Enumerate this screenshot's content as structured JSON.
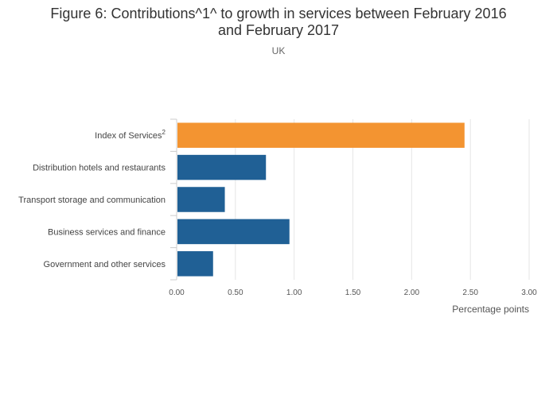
{
  "chart_data": {
    "type": "bar",
    "orientation": "horizontal",
    "title": "Figure 6: Contributions^1^ to growth in services between February 2016 and February 2017",
    "title_lines": [
      "Figure 6: Contributions^1^ to growth in services between February 2016",
      "and February 2017"
    ],
    "subtitle": "UK",
    "xlabel": "Percentage points",
    "ylabel": "",
    "xlim": [
      0,
      3
    ],
    "xticks": [
      "0.00",
      "0.50",
      "1.00",
      "1.50",
      "2.00",
      "2.50",
      "3.00"
    ],
    "grid": true,
    "categories": [
      {
        "label": "Index of Services",
        "sup": "2"
      },
      {
        "label": "Distribution hotels and restaurants",
        "sup": ""
      },
      {
        "label": "Transport storage and communication",
        "sup": ""
      },
      {
        "label": "Business services and finance",
        "sup": ""
      },
      {
        "label": "Government and other services",
        "sup": ""
      }
    ],
    "values": [
      2.45,
      0.76,
      0.41,
      0.96,
      0.31
    ],
    "colors": [
      "#f39431",
      "#206095",
      "#206095",
      "#206095",
      "#206095"
    ]
  }
}
